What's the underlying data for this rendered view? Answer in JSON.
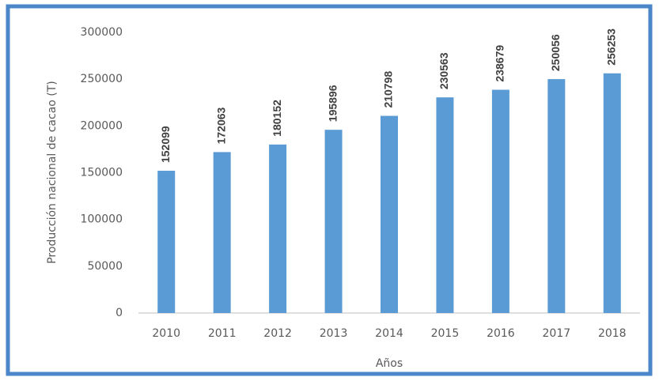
{
  "chart_data": {
    "type": "bar",
    "categories": [
      "2010",
      "2011",
      "2012",
      "2013",
      "2014",
      "2015",
      "2016",
      "2017",
      "2018"
    ],
    "values": [
      152099,
      172063,
      180152,
      195896,
      210798,
      230563,
      238679,
      250056,
      256253
    ],
    "color": "#5b9bd5",
    "xlabel": "Años",
    "ylabel": "Producción nacional de cacao  (T)",
    "ylim": [
      0,
      300000
    ],
    "yticks": [
      0,
      50000,
      100000,
      150000,
      200000,
      250000,
      300000
    ],
    "grid": false
  }
}
